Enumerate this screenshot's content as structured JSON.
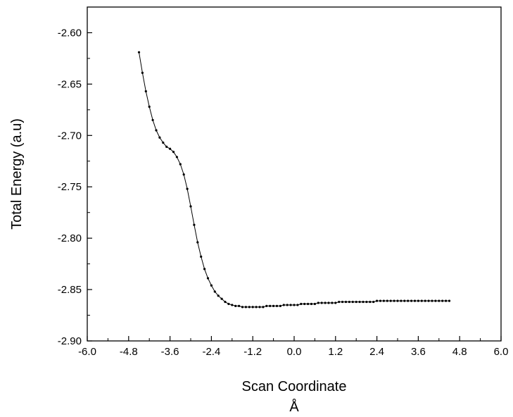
{
  "chart_data": {
    "type": "line",
    "title": "",
    "xlabel": "Scan Coordinate",
    "xlabel_unit": "Å",
    "ylabel": "Total Energy (a.u)",
    "xlim": [
      -6.0,
      6.0
    ],
    "ylim": [
      -2.9,
      -2.575
    ],
    "x_ticks": [
      -6.0,
      -4.8,
      -3.6,
      -2.4,
      -1.2,
      0.0,
      1.2,
      2.4,
      3.6,
      4.8,
      6.0
    ],
    "x_tick_labels": [
      "-6.0",
      "-4.8",
      "-3.6",
      "-2.4",
      "-1.2",
      "0.0",
      "1.2",
      "2.4",
      "3.6",
      "4.8",
      "6.0"
    ],
    "y_ticks": [
      -2.9,
      -2.85,
      -2.8,
      -2.75,
      -2.7,
      -2.65,
      -2.6
    ],
    "y_tick_labels": [
      "-2.90",
      "-2.85",
      "-2.80",
      "-2.75",
      "-2.70",
      "-2.65",
      "-2.60"
    ],
    "grid": false,
    "legend": "none",
    "series": [
      {
        "color": "#000000",
        "marker": "dot",
        "x": [
          -4.5,
          -4.4,
          -4.3,
          -4.2,
          -4.1,
          -4.0,
          -3.9,
          -3.8,
          -3.7,
          -3.6,
          -3.5,
          -3.4,
          -3.3,
          -3.2,
          -3.1,
          -3.0,
          -2.9,
          -2.8,
          -2.7,
          -2.6,
          -2.5,
          -2.4,
          -2.3,
          -2.2,
          -2.1,
          -2.0,
          -1.9,
          -1.8,
          -1.7,
          -1.6,
          -1.5,
          -1.4,
          -1.3,
          -1.2,
          -1.1,
          -1.0,
          -0.9,
          -0.8,
          -0.7,
          -0.6,
          -0.5,
          -0.4,
          -0.3,
          -0.2,
          -0.1,
          0.0,
          0.1,
          0.2,
          0.3,
          0.4,
          0.5,
          0.6,
          0.7,
          0.8,
          0.9,
          1.0,
          1.1,
          1.2,
          1.3,
          1.4,
          1.5,
          1.6,
          1.7,
          1.8,
          1.9,
          2.0,
          2.1,
          2.2,
          2.3,
          2.4,
          2.5,
          2.6,
          2.7,
          2.8,
          2.9,
          3.0,
          3.1,
          3.2,
          3.3,
          3.4,
          3.5,
          3.6,
          3.7,
          3.8,
          3.9,
          4.0,
          4.1,
          4.2,
          4.3,
          4.4,
          4.5
        ],
        "y": [
          -2.619,
          -2.639,
          -2.657,
          -2.672,
          -2.685,
          -2.695,
          -2.702,
          -2.707,
          -2.711,
          -2.713,
          -2.716,
          -2.721,
          -2.728,
          -2.738,
          -2.752,
          -2.769,
          -2.787,
          -2.804,
          -2.818,
          -2.83,
          -2.839,
          -2.846,
          -2.852,
          -2.856,
          -2.859,
          -2.862,
          -2.864,
          -2.865,
          -2.866,
          -2.866,
          -2.867,
          -2.867,
          -2.867,
          -2.867,
          -2.867,
          -2.867,
          -2.867,
          -2.866,
          -2.866,
          -2.866,
          -2.866,
          -2.866,
          -2.865,
          -2.865,
          -2.865,
          -2.865,
          -2.865,
          -2.864,
          -2.864,
          -2.864,
          -2.864,
          -2.864,
          -2.863,
          -2.863,
          -2.863,
          -2.863,
          -2.863,
          -2.863,
          -2.862,
          -2.862,
          -2.862,
          -2.862,
          -2.862,
          -2.862,
          -2.862,
          -2.862,
          -2.862,
          -2.862,
          -2.862,
          -2.861,
          -2.861,
          -2.861,
          -2.861,
          -2.861,
          -2.861,
          -2.861,
          -2.861,
          -2.861,
          -2.861,
          -2.861,
          -2.861,
          -2.861,
          -2.861,
          -2.861,
          -2.861,
          -2.861,
          -2.861,
          -2.861,
          -2.861,
          -2.861,
          -2.861
        ]
      }
    ]
  }
}
